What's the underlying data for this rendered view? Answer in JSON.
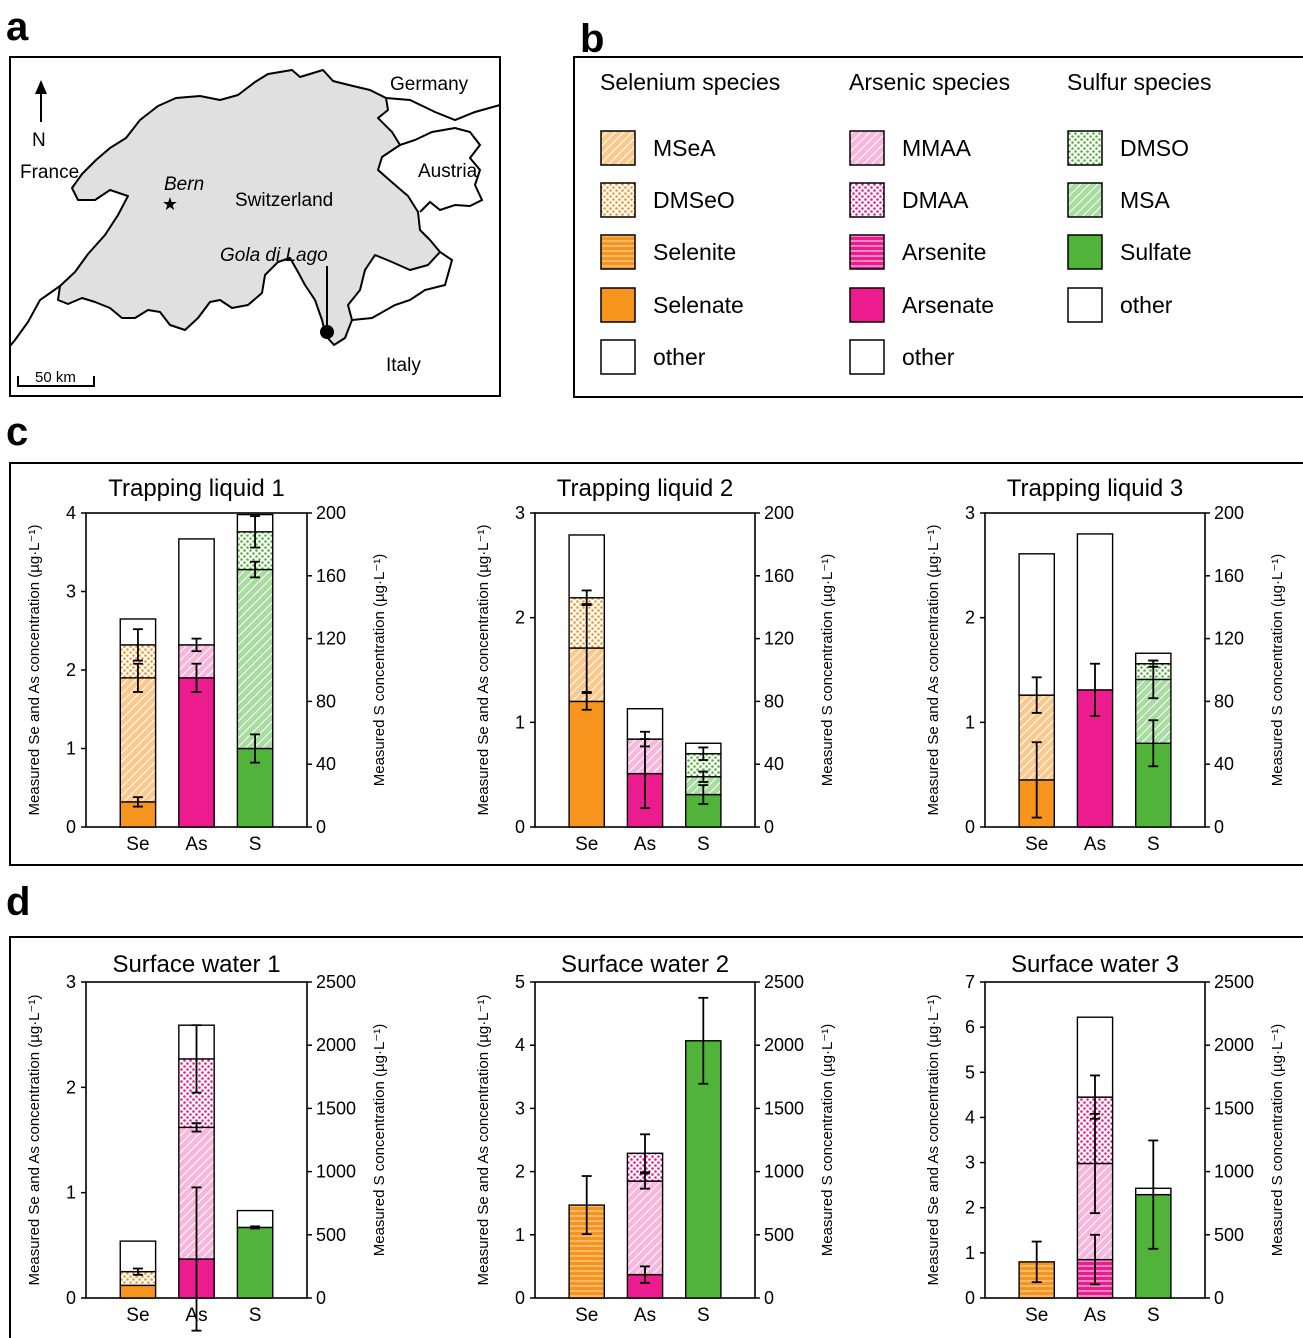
{
  "colors": {
    "orange": "#f7941d",
    "orange_light": "#fbc98c",
    "magenta": "#ec1c8f",
    "magenta_pale": "#f7b6dc",
    "green": "#52b33a",
    "green_light": "#a9dca0",
    "panel_grey": "#e0e0e0"
  },
  "panels": {
    "a": "a",
    "b": "b",
    "c": "c",
    "d": "d"
  },
  "map": {
    "north": "N",
    "scale_label": "50 km",
    "labels": {
      "germany": "Germany",
      "france": "France",
      "austria": "Austria",
      "italy": "Italy",
      "switzerland": "Switzerland",
      "bern": "Bern",
      "site": "Gola di Lago"
    }
  },
  "legend": {
    "columns": [
      {
        "header": "Selenium species",
        "items": [
          {
            "label": "MSeA",
            "fill": "orange",
            "pattern": "diag"
          },
          {
            "label": "DMSeO",
            "fill": "orange",
            "pattern": "dots"
          },
          {
            "label": "Selenite",
            "fill": "orange",
            "pattern": "horiz"
          },
          {
            "label": "Selenate",
            "fill": "orange",
            "pattern": "solid"
          },
          {
            "label": "other",
            "fill": "white",
            "pattern": "none"
          }
        ]
      },
      {
        "header": "Arsenic species",
        "items": [
          {
            "label": "MMAA",
            "fill": "magenta",
            "pattern": "diag"
          },
          {
            "label": "DMAA",
            "fill": "magenta",
            "pattern": "dots"
          },
          {
            "label": "Arsenite",
            "fill": "magenta",
            "pattern": "horiz"
          },
          {
            "label": "Arsenate",
            "fill": "magenta",
            "pattern": "solid"
          },
          {
            "label": "other",
            "fill": "white",
            "pattern": "none"
          }
        ]
      },
      {
        "header": "Sulfur species",
        "items": [
          {
            "label": "DMSO",
            "fill": "green",
            "pattern": "dots"
          },
          {
            "label": "MSA",
            "fill": "green",
            "pattern": "diag"
          },
          {
            "label": "Sulfate",
            "fill": "green",
            "pattern": "solid"
          },
          {
            "label": "other",
            "fill": "white",
            "pattern": "none"
          }
        ]
      }
    ]
  },
  "axis_labels": {
    "left": "Measured Se and As concentration (µg·L⁻¹)",
    "right": "Measured S concentration (µg·L⁻¹)"
  },
  "chart_data": [
    {
      "type": "bar",
      "stacked": true,
      "title": "Trapping liquid 1",
      "categories": [
        "Se",
        "As",
        "S"
      ],
      "ylim": [
        0,
        4
      ],
      "yticks": [
        0,
        1,
        2,
        3,
        4
      ],
      "ylim_right": [
        0,
        200
      ],
      "yticks_right": [
        0,
        40,
        80,
        120,
        160,
        200
      ],
      "bars": [
        {
          "segments": [
            {
              "species": "Selenate",
              "value": 0.32,
              "err": 0.06
            },
            {
              "species": "MSeA",
              "value": 1.58,
              "err": 0.18
            },
            {
              "species": "DMSeO",
              "value": 0.42,
              "err": 0.2
            },
            {
              "species": "other",
              "value": 0.33
            }
          ]
        },
        {
          "segments": [
            {
              "species": "Arsenate",
              "value": 1.9,
              "err": 0.18
            },
            {
              "species": "MMAA",
              "value": 0.42,
              "err": 0.08
            },
            {
              "species": "other",
              "value": 1.35
            }
          ]
        },
        {
          "segments": [
            {
              "species": "Sulfate",
              "value": 1.0,
              "err": 0.18
            },
            {
              "species": "MSA",
              "value": 2.28,
              "err": 0.1
            },
            {
              "species": "DMSO",
              "value": 0.48,
              "err": 0.2
            },
            {
              "species": "other",
              "value": 0.22
            }
          ]
        }
      ]
    },
    {
      "type": "bar",
      "stacked": true,
      "title": "Trapping liquid 2",
      "categories": [
        "Se",
        "As",
        "S"
      ],
      "ylim": [
        0,
        3
      ],
      "yticks": [
        0,
        1,
        2,
        3
      ],
      "ylim_right": [
        0,
        200
      ],
      "yticks_right": [
        0,
        40,
        80,
        120,
        160,
        200
      ],
      "bars": [
        {
          "segments": [
            {
              "species": "Selenate",
              "value": 1.2,
              "err": 0.08
            },
            {
              "species": "MSeA",
              "value": 0.51,
              "err": 0.42
            },
            {
              "species": "DMSeO",
              "value": 0.48,
              "err": 0.07
            },
            {
              "species": "other",
              "value": 0.6
            }
          ]
        },
        {
          "segments": [
            {
              "species": "Arsenate",
              "value": 0.51,
              "err": 0.33
            },
            {
              "species": "MMAA",
              "value": 0.33,
              "err": 0.07
            },
            {
              "species": "other",
              "value": 0.29
            }
          ]
        },
        {
          "segments": [
            {
              "species": "Sulfate",
              "value": 0.31,
              "err": 0.09
            },
            {
              "species": "MSA",
              "value": 0.17,
              "err": 0.05
            },
            {
              "species": "DMSO",
              "value": 0.22,
              "err": 0.06
            },
            {
              "species": "other",
              "value": 0.1
            }
          ]
        }
      ]
    },
    {
      "type": "bar",
      "stacked": true,
      "title": "Trapping liquid 3",
      "categories": [
        "Se",
        "As",
        "S"
      ],
      "ylim": [
        0,
        3
      ],
      "yticks": [
        0,
        1,
        2,
        3
      ],
      "ylim_right": [
        0,
        200
      ],
      "yticks_right": [
        0,
        40,
        80,
        120,
        160,
        200
      ],
      "bars": [
        {
          "segments": [
            {
              "species": "Selenate",
              "value": 0.45,
              "err": 0.36
            },
            {
              "species": "MSeA",
              "value": 0.81,
              "err": 0.17
            },
            {
              "species": "other",
              "value": 1.35
            }
          ]
        },
        {
          "segments": [
            {
              "species": "Arsenate",
              "value": 1.31,
              "err": 0.25
            },
            {
              "species": "other",
              "value": 1.49
            }
          ]
        },
        {
          "segments": [
            {
              "species": "Sulfate",
              "value": 0.8,
              "err": 0.22
            },
            {
              "species": "MSA",
              "value": 0.61,
              "err": 0.18
            },
            {
              "species": "DMSO",
              "value": 0.15,
              "err": 0.03
            },
            {
              "species": "other",
              "value": 0.1
            }
          ]
        }
      ]
    },
    {
      "type": "bar",
      "stacked": true,
      "title": "Surface water 1",
      "categories": [
        "Se",
        "As",
        "S"
      ],
      "ylim": [
        0,
        3
      ],
      "yticks": [
        0,
        1,
        2,
        3
      ],
      "ylim_right": [
        0,
        2500
      ],
      "yticks_right": [
        0,
        500,
        1000,
        1500,
        2000,
        2500
      ],
      "bars": [
        {
          "segments": [
            {
              "species": "Selenate",
              "value": 0.12
            },
            {
              "species": "DMSeO",
              "value": 0.13,
              "err": 0.03
            },
            {
              "species": "other",
              "value": 0.29
            }
          ]
        },
        {
          "segments": [
            {
              "species": "Arsenate",
              "value": 0.37,
              "err": 0.68
            },
            {
              "species": "MMAA",
              "value": 1.25,
              "err": 0.04
            },
            {
              "species": "DMAA",
              "value": 0.65,
              "err": 0.32
            },
            {
              "species": "other",
              "value": 0.32
            }
          ]
        },
        {
          "segments": [
            {
              "species": "Sulfate",
              "value": 0.67,
              "err": 0.01
            },
            {
              "species": "other",
              "value": 0.16
            }
          ]
        }
      ]
    },
    {
      "type": "bar",
      "stacked": true,
      "title": "Surface water 2",
      "categories": [
        "Se",
        "As",
        "S"
      ],
      "ylim": [
        0,
        5
      ],
      "yticks": [
        0,
        1,
        2,
        3,
        4,
        5
      ],
      "ylim_right": [
        0,
        2500
      ],
      "yticks_right": [
        0,
        500,
        1000,
        1500,
        2000,
        2500
      ],
      "bars": [
        {
          "segments": [
            {
              "species": "Selenite",
              "value": 1.47,
              "err": 0.46
            }
          ]
        },
        {
          "segments": [
            {
              "species": "Arsenate",
              "value": 0.37,
              "err": 0.13
            },
            {
              "species": "MMAA",
              "value": 1.48,
              "err": 0.12
            },
            {
              "species": "DMAA",
              "value": 0.44,
              "err": 0.3
            }
          ]
        },
        {
          "segments": [
            {
              "species": "Sulfate",
              "value": 4.07,
              "err": 0.68
            }
          ]
        }
      ]
    },
    {
      "type": "bar",
      "stacked": true,
      "title": "Surface water 3",
      "categories": [
        "Se",
        "As",
        "S"
      ],
      "ylim": [
        0,
        7
      ],
      "yticks": [
        0,
        1,
        2,
        3,
        4,
        5,
        6,
        7
      ],
      "ylim_right": [
        0,
        2500
      ],
      "yticks_right": [
        0,
        500,
        1000,
        1500,
        2000,
        2500
      ],
      "bars": [
        {
          "segments": [
            {
              "species": "Selenite",
              "value": 0.8,
              "err": 0.45
            }
          ]
        },
        {
          "segments": [
            {
              "species": "Arsenite",
              "value": 0.85,
              "err": 0.55
            },
            {
              "species": "MMAA",
              "value": 2.13,
              "err": 1.1
            },
            {
              "species": "DMAA",
              "value": 1.47,
              "err": 0.48
            },
            {
              "species": "other",
              "value": 1.77
            }
          ]
        },
        {
          "segments": [
            {
              "species": "Sulfate",
              "value": 2.29,
              "err": 1.2
            },
            {
              "species": "other",
              "value": 0.14
            }
          ]
        }
      ]
    }
  ]
}
